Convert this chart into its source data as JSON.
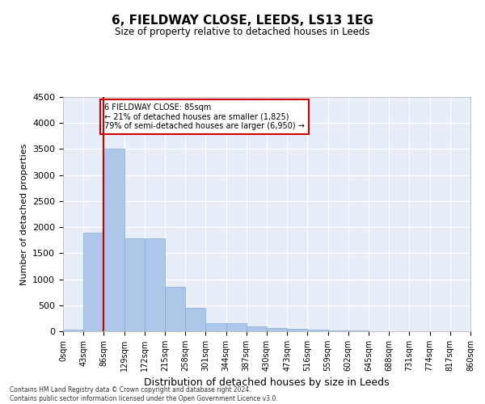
{
  "title": "6, FIELDWAY CLOSE, LEEDS, LS13 1EG",
  "subtitle": "Size of property relative to detached houses in Leeds",
  "xlabel": "Distribution of detached houses by size in Leeds",
  "ylabel": "Number of detached properties",
  "bins": [
    0,
    43,
    86,
    129,
    172,
    215,
    258,
    301,
    344,
    387,
    430,
    473,
    516,
    559,
    602,
    645,
    688,
    731,
    774,
    817,
    860
  ],
  "counts": [
    35,
    1900,
    3500,
    1780,
    1780,
    850,
    450,
    160,
    150,
    90,
    55,
    40,
    30,
    10,
    8,
    5,
    3,
    2,
    1,
    1
  ],
  "bar_color": "#aec6e8",
  "bar_edge_color": "#7badd4",
  "property_size": 85,
  "property_line_color": "#cc0000",
  "annotation_text": "6 FIELDWAY CLOSE: 85sqm\n← 21% of detached houses are smaller (1,825)\n79% of semi-detached houses are larger (6,950) →",
  "annotation_box_color": "#ffffff",
  "annotation_box_edge_color": "#cc0000",
  "ylim": [
    0,
    4500
  ],
  "yticks": [
    0,
    500,
    1000,
    1500,
    2000,
    2500,
    3000,
    3500,
    4000,
    4500
  ],
  "bg_color": "#e8eef8",
  "grid_color": "#ffffff",
  "fig_color": "#ffffff",
  "footer_line1": "Contains HM Land Registry data © Crown copyright and database right 2024.",
  "footer_line2": "Contains public sector information licensed under the Open Government Licence v3.0."
}
